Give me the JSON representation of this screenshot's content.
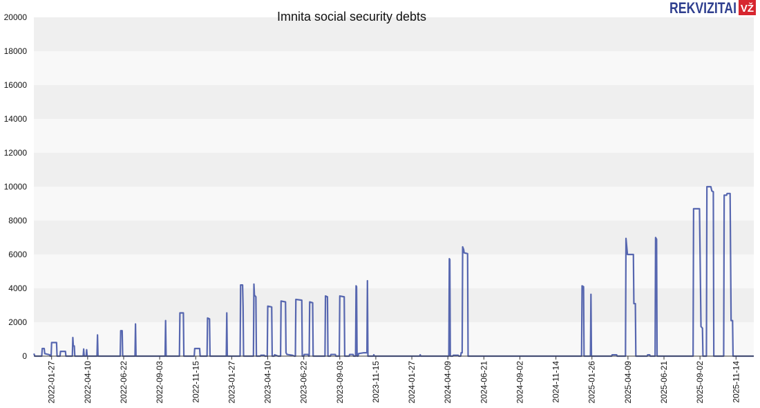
{
  "logo": {
    "brand": "REKVIZITAI",
    "badge": "VŽ",
    "brand_color": "#2f3f8f",
    "badge_color": "#d7262f"
  },
  "chart_data": {
    "type": "line",
    "title": "Imnita social security debts",
    "xlabel": "",
    "ylabel": "",
    "ylim": [
      0,
      20000
    ],
    "yticks": [
      0,
      2000,
      4000,
      6000,
      8000,
      10000,
      12000,
      14000,
      16000,
      18000,
      20000
    ],
    "x_range": [
      "2021-12-22",
      "2025-12-20"
    ],
    "xticks": [
      "2022-01-27",
      "2022-04-10",
      "2022-06-22",
      "2022-09-03",
      "2022-11-15",
      "2023-01-27",
      "2023-04-10",
      "2023-06-22",
      "2023-09-03",
      "2023-11-15",
      "2024-01-27",
      "2024-04-09",
      "2024-06-21",
      "2024-09-02",
      "2024-11-14",
      "2025-01-26",
      "2025-04-09",
      "2025-06-21",
      "2025-09-02",
      "2025-11-14"
    ],
    "grid": true,
    "line_color": "#3b4ea3",
    "series": [
      {
        "name": "",
        "points": [
          [
            "2021-12-22",
            150
          ],
          [
            "2021-12-24",
            0
          ],
          [
            "2022-01-07",
            0
          ],
          [
            "2022-01-08",
            450
          ],
          [
            "2022-01-12",
            450
          ],
          [
            "2022-01-13",
            150
          ],
          [
            "2022-01-23",
            80
          ],
          [
            "2022-01-24",
            0
          ],
          [
            "2022-01-26",
            0
          ],
          [
            "2022-01-27",
            800
          ],
          [
            "2022-02-06",
            800
          ],
          [
            "2022-02-07",
            0
          ],
          [
            "2022-02-13",
            0
          ],
          [
            "2022-02-14",
            280
          ],
          [
            "2022-02-24",
            280
          ],
          [
            "2022-02-25",
            0
          ],
          [
            "2022-03-10",
            0
          ],
          [
            "2022-03-11",
            1100
          ],
          [
            "2022-03-12",
            600
          ],
          [
            "2022-03-14",
            600
          ],
          [
            "2022-03-15",
            0
          ],
          [
            "2022-04-01",
            0
          ],
          [
            "2022-04-02",
            420
          ],
          [
            "2022-04-03",
            0
          ],
          [
            "2022-04-07",
            0
          ],
          [
            "2022-04-08",
            380
          ],
          [
            "2022-04-09",
            0
          ],
          [
            "2022-04-29",
            0
          ],
          [
            "2022-04-30",
            1250
          ],
          [
            "2022-05-01",
            0
          ],
          [
            "2022-06-15",
            0
          ],
          [
            "2022-06-16",
            1500
          ],
          [
            "2022-06-19",
            1500
          ],
          [
            "2022-06-20",
            0
          ],
          [
            "2022-07-15",
            0
          ],
          [
            "2022-07-16",
            1900
          ],
          [
            "2022-07-17",
            0
          ],
          [
            "2022-09-14",
            0
          ],
          [
            "2022-09-15",
            2100
          ],
          [
            "2022-09-16",
            0
          ],
          [
            "2022-10-13",
            0
          ],
          [
            "2022-10-14",
            2550
          ],
          [
            "2022-10-21",
            2550
          ],
          [
            "2022-10-22",
            0
          ],
          [
            "2022-11-12",
            0
          ],
          [
            "2022-11-13",
            450
          ],
          [
            "2022-11-23",
            450
          ],
          [
            "2022-11-24",
            0
          ],
          [
            "2022-12-08",
            0
          ],
          [
            "2022-12-09",
            2250
          ],
          [
            "2022-12-13",
            2200
          ],
          [
            "2022-12-14",
            0
          ],
          [
            "2023-01-16",
            0
          ],
          [
            "2023-01-17",
            2550
          ],
          [
            "2023-01-18",
            0
          ],
          [
            "2023-02-13",
            0
          ],
          [
            "2023-02-14",
            4200
          ],
          [
            "2023-02-18",
            4200
          ],
          [
            "2023-02-19",
            2900
          ],
          [
            "2023-02-20",
            0
          ],
          [
            "2023-03-12",
            0
          ],
          [
            "2023-03-13",
            4250
          ],
          [
            "2023-03-14",
            3600
          ],
          [
            "2023-03-17",
            3500
          ],
          [
            "2023-03-18",
            0
          ],
          [
            "2023-03-26",
            0
          ],
          [
            "2023-03-27",
            50
          ],
          [
            "2023-04-03",
            50
          ],
          [
            "2023-04-04",
            0
          ],
          [
            "2023-04-09",
            0
          ],
          [
            "2023-04-10",
            2950
          ],
          [
            "2023-04-18",
            2900
          ],
          [
            "2023-04-19",
            0
          ],
          [
            "2023-04-23",
            0
          ],
          [
            "2023-04-24",
            80
          ],
          [
            "2023-05-01",
            0
          ],
          [
            "2023-05-06",
            0
          ],
          [
            "2023-05-07",
            3250
          ],
          [
            "2023-05-16",
            3200
          ],
          [
            "2023-05-17",
            200
          ],
          [
            "2023-05-19",
            100
          ],
          [
            "2023-05-30",
            50
          ],
          [
            "2023-06-03",
            0
          ],
          [
            "2023-06-05",
            0
          ],
          [
            "2023-06-06",
            3350
          ],
          [
            "2023-06-18",
            3300
          ],
          [
            "2023-06-19",
            0
          ],
          [
            "2023-06-22",
            0
          ],
          [
            "2023-06-23",
            100
          ],
          [
            "2023-07-01",
            100
          ],
          [
            "2023-07-02",
            0
          ],
          [
            "2023-07-03",
            0
          ],
          [
            "2023-07-04",
            3200
          ],
          [
            "2023-07-10",
            3150
          ],
          [
            "2023-07-11",
            0
          ],
          [
            "2023-08-04",
            0
          ],
          [
            "2023-08-05",
            3550
          ],
          [
            "2023-08-09",
            3500
          ],
          [
            "2023-08-10",
            0
          ],
          [
            "2023-08-15",
            0
          ],
          [
            "2023-08-16",
            100
          ],
          [
            "2023-08-25",
            100
          ],
          [
            "2023-08-26",
            0
          ],
          [
            "2023-09-02",
            0
          ],
          [
            "2023-09-03",
            3550
          ],
          [
            "2023-09-12",
            3500
          ],
          [
            "2023-09-13",
            0
          ],
          [
            "2023-09-22",
            0
          ],
          [
            "2023-09-23",
            100
          ],
          [
            "2023-09-30",
            100
          ],
          [
            "2023-10-01",
            0
          ],
          [
            "2023-10-05",
            0
          ],
          [
            "2023-10-06",
            4150
          ],
          [
            "2023-10-07",
            4100
          ],
          [
            "2023-10-08",
            0
          ],
          [
            "2023-10-10",
            0
          ],
          [
            "2023-10-11",
            150
          ],
          [
            "2023-10-22",
            200
          ],
          [
            "2023-10-28",
            200
          ],
          [
            "2023-10-29",
            4450
          ],
          [
            "2023-10-30",
            0
          ],
          [
            "2023-11-10",
            0
          ],
          [
            "2023-11-11",
            80
          ],
          [
            "2023-11-12",
            0
          ],
          [
            "2024-02-12",
            0
          ],
          [
            "2024-02-13",
            80
          ],
          [
            "2024-02-14",
            0
          ],
          [
            "2024-04-11",
            0
          ],
          [
            "2024-04-12",
            5750
          ],
          [
            "2024-04-13",
            5700
          ],
          [
            "2024-04-14",
            0
          ],
          [
            "2024-04-19",
            0
          ],
          [
            "2024-04-20",
            50
          ],
          [
            "2024-04-30",
            50
          ],
          [
            "2024-05-01",
            0
          ],
          [
            "2024-05-05",
            0
          ],
          [
            "2024-05-06",
            200
          ],
          [
            "2024-05-08",
            200
          ],
          [
            "2024-05-09",
            6450
          ],
          [
            "2024-05-11",
            6300
          ],
          [
            "2024-05-12",
            6100
          ],
          [
            "2024-05-19",
            6050
          ],
          [
            "2024-05-20",
            0
          ],
          [
            "2025-01-05",
            0
          ],
          [
            "2025-01-06",
            4150
          ],
          [
            "2025-01-09",
            4100
          ],
          [
            "2025-01-10",
            0
          ],
          [
            "2025-01-23",
            0
          ],
          [
            "2025-01-24",
            3650
          ],
          [
            "2025-01-25",
            0
          ],
          [
            "2025-03-07",
            0
          ],
          [
            "2025-03-08",
            80
          ],
          [
            "2025-03-17",
            80
          ],
          [
            "2025-03-18",
            0
          ],
          [
            "2025-04-04",
            0
          ],
          [
            "2025-04-05",
            6950
          ],
          [
            "2025-04-08",
            6000
          ],
          [
            "2025-04-20",
            6000
          ],
          [
            "2025-04-21",
            3100
          ],
          [
            "2025-04-24",
            3100
          ],
          [
            "2025-04-25",
            0
          ],
          [
            "2025-05-18",
            0
          ],
          [
            "2025-05-19",
            80
          ],
          [
            "2025-05-23",
            80
          ],
          [
            "2025-05-24",
            0
          ],
          [
            "2025-06-03",
            0
          ],
          [
            "2025-06-04",
            7000
          ],
          [
            "2025-06-06",
            6900
          ],
          [
            "2025-06-07",
            0
          ],
          [
            "2025-08-19",
            0
          ],
          [
            "2025-08-20",
            8700
          ],
          [
            "2025-09-01",
            8700
          ],
          [
            "2025-09-04",
            1750
          ],
          [
            "2025-09-07",
            1650
          ],
          [
            "2025-09-08",
            0
          ],
          [
            "2025-09-15",
            0
          ],
          [
            "2025-09-16",
            10000
          ],
          [
            "2025-09-24",
            10000
          ],
          [
            "2025-09-26",
            9750
          ],
          [
            "2025-09-29",
            9700
          ],
          [
            "2025-09-30",
            0
          ],
          [
            "2025-10-20",
            0
          ],
          [
            "2025-10-21",
            9500
          ],
          [
            "2025-10-26",
            9500
          ],
          [
            "2025-10-27",
            9600
          ],
          [
            "2025-11-02",
            9600
          ],
          [
            "2025-11-04",
            2100
          ],
          [
            "2025-11-07",
            2100
          ],
          [
            "2025-11-08",
            0
          ],
          [
            "2025-12-20",
            0
          ]
        ]
      }
    ]
  }
}
